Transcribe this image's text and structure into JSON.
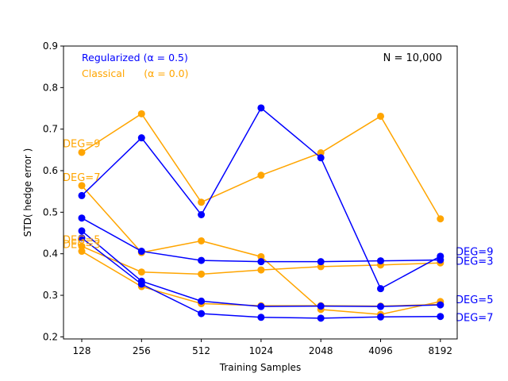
{
  "chart_data": {
    "type": "line",
    "xlabel": "Training Samples",
    "ylabel": "STD( hedge error )",
    "x": [
      "128",
      "256",
      "512",
      "1024",
      "2048",
      "4096",
      "8192"
    ],
    "ylim": [
      0.195,
      0.9
    ],
    "yticks": [
      "0.2",
      "0.3",
      "0.4",
      "0.5",
      "0.6",
      "0.7",
      "0.8",
      "0.9"
    ],
    "ytick_values": [
      0.2,
      0.3,
      0.4,
      0.5,
      0.6,
      0.7,
      0.8,
      0.9
    ],
    "grid": false,
    "colors": {
      "regularized": "#0000ff",
      "classical": "#ffa500"
    },
    "legend": {
      "placement": "top-left",
      "items": [
        {
          "label": "Regularized (α = 0.5)",
          "group": "regularized"
        },
        {
          "label": "Classical      (α = 0.0)",
          "group": "classical"
        }
      ]
    },
    "annotation": "N = 10,000",
    "series": [
      {
        "group": "classical",
        "label": "DEG=9",
        "values": [
          0.644,
          0.737,
          0.524,
          0.589,
          0.643,
          0.731,
          0.484
        ]
      },
      {
        "group": "classical",
        "label": "DEG=7",
        "values": [
          0.564,
          0.403,
          0.431,
          0.393,
          0.266,
          0.254,
          0.285
        ]
      },
      {
        "group": "classical",
        "label": "DEG=5",
        "values": [
          0.418,
          0.356,
          0.351,
          0.361,
          0.369,
          0.373,
          0.378
        ]
      },
      {
        "group": "classical",
        "label": "DEG=3",
        "values": [
          0.406,
          0.321,
          0.28,
          0.275,
          0.275,
          0.274,
          0.278
        ]
      },
      {
        "group": "regularized",
        "label": "DEG=9",
        "values": [
          0.54,
          0.679,
          0.494,
          0.751,
          0.631,
          0.316,
          0.394
        ]
      },
      {
        "group": "regularized",
        "label": "DEG=3",
        "values": [
          0.486,
          0.406,
          0.384,
          0.381,
          0.381,
          0.383,
          0.385
        ]
      },
      {
        "group": "regularized",
        "label": "DEG=5",
        "values": [
          0.455,
          0.334,
          0.286,
          0.273,
          0.274,
          0.273,
          0.277
        ]
      },
      {
        "group": "regularized",
        "label": "DEG=7",
        "values": [
          0.438,
          0.327,
          0.256,
          0.247,
          0.245,
          0.248,
          0.249
        ]
      }
    ],
    "left_labels": [
      {
        "text": "DEG=9",
        "group": "classical",
        "y": 0.666
      },
      {
        "text": "DEG=7",
        "group": "classical",
        "y": 0.585
      },
      {
        "text": "DEG=5",
        "group": "classical",
        "y": 0.435
      },
      {
        "text": "DEG=3",
        "group": "classical",
        "y": 0.423
      }
    ],
    "right_labels": [
      {
        "text": "DEG=9",
        "group": "regularized",
        "y": 0.406
      },
      {
        "text": "DEG=3",
        "group": "regularized",
        "y": 0.383
      },
      {
        "text": "DEG=5",
        "group": "regularized",
        "y": 0.291
      },
      {
        "text": "DEG=7",
        "group": "regularized",
        "y": 0.248
      }
    ]
  }
}
